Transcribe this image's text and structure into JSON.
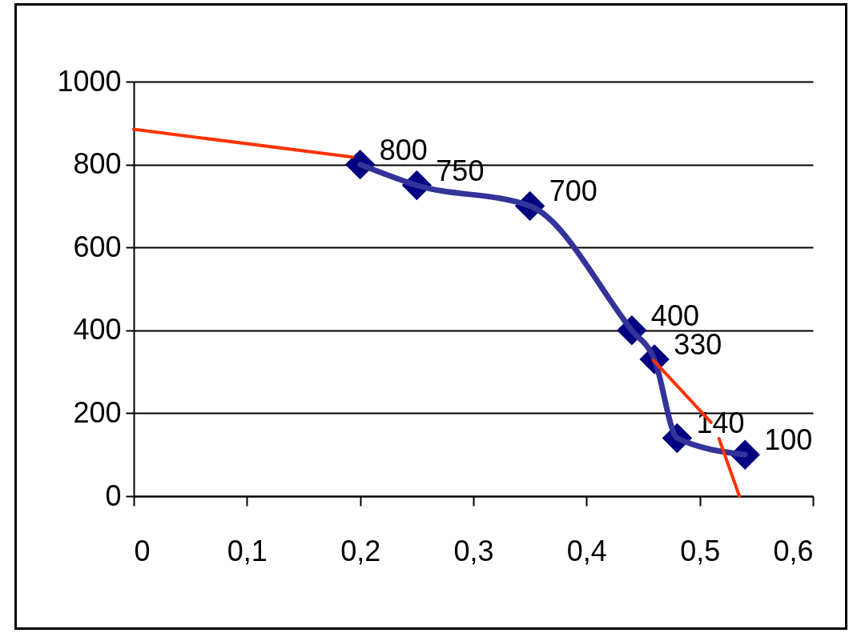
{
  "chart_data": {
    "type": "line",
    "xlim": [
      0,
      0.6
    ],
    "ylim": [
      0,
      1000
    ],
    "xticks": [
      0,
      {
        "value": 0.1,
        "label": "0,1"
      },
      {
        "value": 0.2,
        "label": "0,2"
      },
      {
        "value": 0.3,
        "label": "0,3"
      },
      {
        "value": 0.4,
        "label": "0,4"
      },
      {
        "value": 0.5,
        "label": "0,5"
      },
      {
        "value": 0.6,
        "label": "0,6"
      }
    ],
    "yticks": [
      0,
      200,
      400,
      600,
      800,
      1000
    ],
    "grid": "y",
    "series": [
      {
        "color": "#333399",
        "marker": "diamond",
        "x": [
          0.2,
          0.25,
          0.35,
          0.44,
          0.46,
          0.48,
          0.54
        ],
        "values": [
          800,
          750,
          700,
          400,
          330,
          140,
          100
        ],
        "value_labels": [
          "800",
          "750",
          "700",
          "400",
          "330",
          "140",
          "100"
        ]
      },
      {
        "color": "#ff3300",
        "marker": "none",
        "x": [
          0,
          0.193
        ],
        "values": [
          885,
          818
        ]
      },
      {
        "color": "#ff3300",
        "marker": "none",
        "x": [
          0.459,
          0.51
        ],
        "values": [
          328,
          178
        ]
      },
      {
        "color": "#ff3300",
        "marker": "none",
        "x": [
          0.517,
          0.535
        ],
        "values": [
          139,
          0
        ]
      }
    ]
  }
}
